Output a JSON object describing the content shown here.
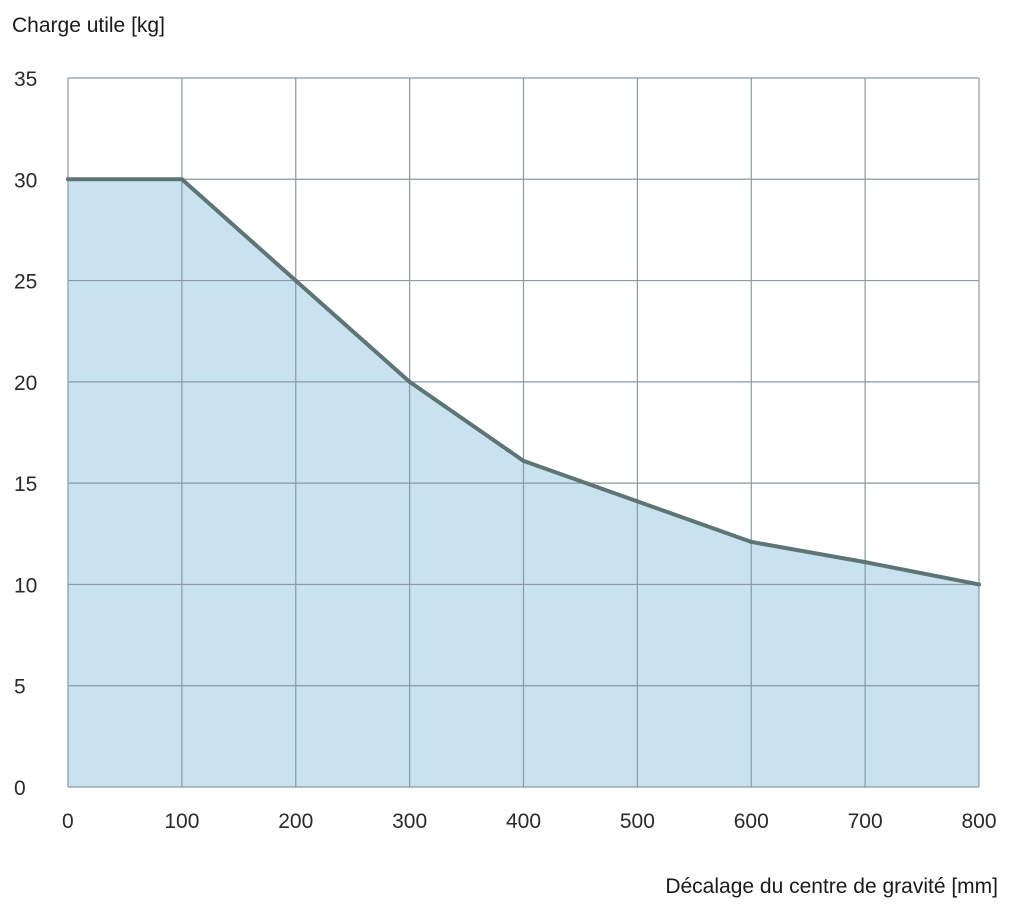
{
  "chart_data": {
    "type": "area",
    "title": "",
    "xlabel": "Décalage du centre de gravité [mm]",
    "ylabel": "Charge utile [kg]",
    "x": [
      0,
      100,
      200,
      300,
      400,
      500,
      600,
      700,
      800
    ],
    "series": [
      {
        "values": [
          30,
          30,
          25,
          20,
          16.1,
          14.1,
          12.1,
          11.1,
          10
        ]
      }
    ],
    "xlim": [
      0,
      800
    ],
    "ylim": [
      0,
      35
    ],
    "xticks": [
      0,
      100,
      200,
      300,
      400,
      500,
      600,
      700,
      800
    ],
    "yticks": [
      0,
      5,
      10,
      15,
      20,
      25,
      30,
      35
    ],
    "x_tick_labels": [
      "0",
      "100",
      "200",
      "300",
      "400",
      "500",
      "600",
      "700",
      "800"
    ],
    "y_tick_labels": [
      "0",
      "5",
      "10",
      "15",
      "20",
      "25",
      "30",
      "35"
    ],
    "grid": true,
    "legend": "none",
    "colors": {
      "fill": "#c8e2f0",
      "line": "#5f7575",
      "grid": "#8a99a3",
      "axis_text": "#2a2a2a"
    }
  }
}
